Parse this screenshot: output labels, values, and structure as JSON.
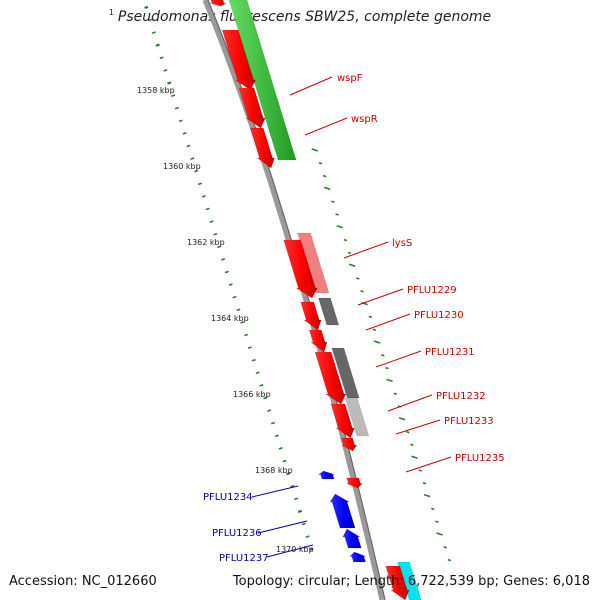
{
  "title": {
    "footnote": "1",
    "text": "Pseudomonas fluorescens SBW25, complete genome"
  },
  "footer": {
    "accession": "Accession: NC_012660",
    "summary": "Topology: circular; Length: 6,722,539 bp; Genes: 6,018"
  },
  "colors": {
    "backbone": "#8c8c8c",
    "tick": "#2f7d2f",
    "forward_gene": "#ff0000",
    "reverse_gene": "#0000ff",
    "forward_label": "#cc0000",
    "reverse_label": "#0000aa",
    "cog_green": "#33cc33",
    "cog_pink": "#f08080",
    "cog_gray": "#666666",
    "cog_light_gray": "#bbbbbb",
    "cog_cyan": "#00e5ee"
  },
  "kbp_labels": [
    "1358 kbp",
    "1360 kbp",
    "1362 kbp",
    "1364 kbp",
    "1366 kbp",
    "1368 kbp",
    "1370 kbp"
  ],
  "gene_labels": [
    {
      "name": "wspF",
      "strand": "forward"
    },
    {
      "name": "wspR",
      "strand": "forward"
    },
    {
      "name": "lysS",
      "strand": "forward"
    },
    {
      "name": "PFLU1229",
      "strand": "forward"
    },
    {
      "name": "PFLU1230",
      "strand": "forward"
    },
    {
      "name": "PFLU1231",
      "strand": "forward"
    },
    {
      "name": "PFLU1232",
      "strand": "forward"
    },
    {
      "name": "PFLU1233",
      "strand": "forward"
    },
    {
      "name": "PFLU1235",
      "strand": "forward"
    },
    {
      "name": "PFLU1234",
      "strand": "reverse"
    },
    {
      "name": "PFLU1236",
      "strand": "reverse"
    },
    {
      "name": "PFLU1237",
      "strand": "reverse"
    }
  ]
}
